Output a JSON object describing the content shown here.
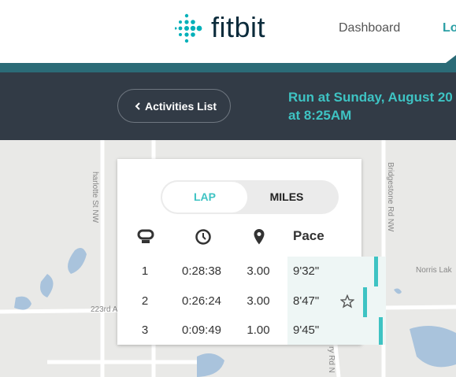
{
  "header": {
    "logo": "fitbit",
    "nav": [
      "Dashboard",
      "Lo"
    ]
  },
  "toolbar": {
    "back_button": "Activities List",
    "title_lines": [
      "Run at Sunday, August 20",
      "at 8:25AM"
    ]
  },
  "map": {
    "labels": [
      "Bridgestone Rd NW",
      "Norris Lak",
      "223rd A",
      "harlotte St NW",
      "ry Rd N"
    ]
  },
  "laps": {
    "tabs": [
      "LAP",
      "MILES"
    ],
    "pace_header": "Pace",
    "rows": [
      [
        "1",
        "0:28:38",
        "3.00",
        "9'32\""
      ],
      [
        "2",
        "0:26:24",
        "3.00",
        "8'47\""
      ],
      [
        "3",
        "0:09:49",
        "1.00",
        "9'45\""
      ]
    ]
  }
}
